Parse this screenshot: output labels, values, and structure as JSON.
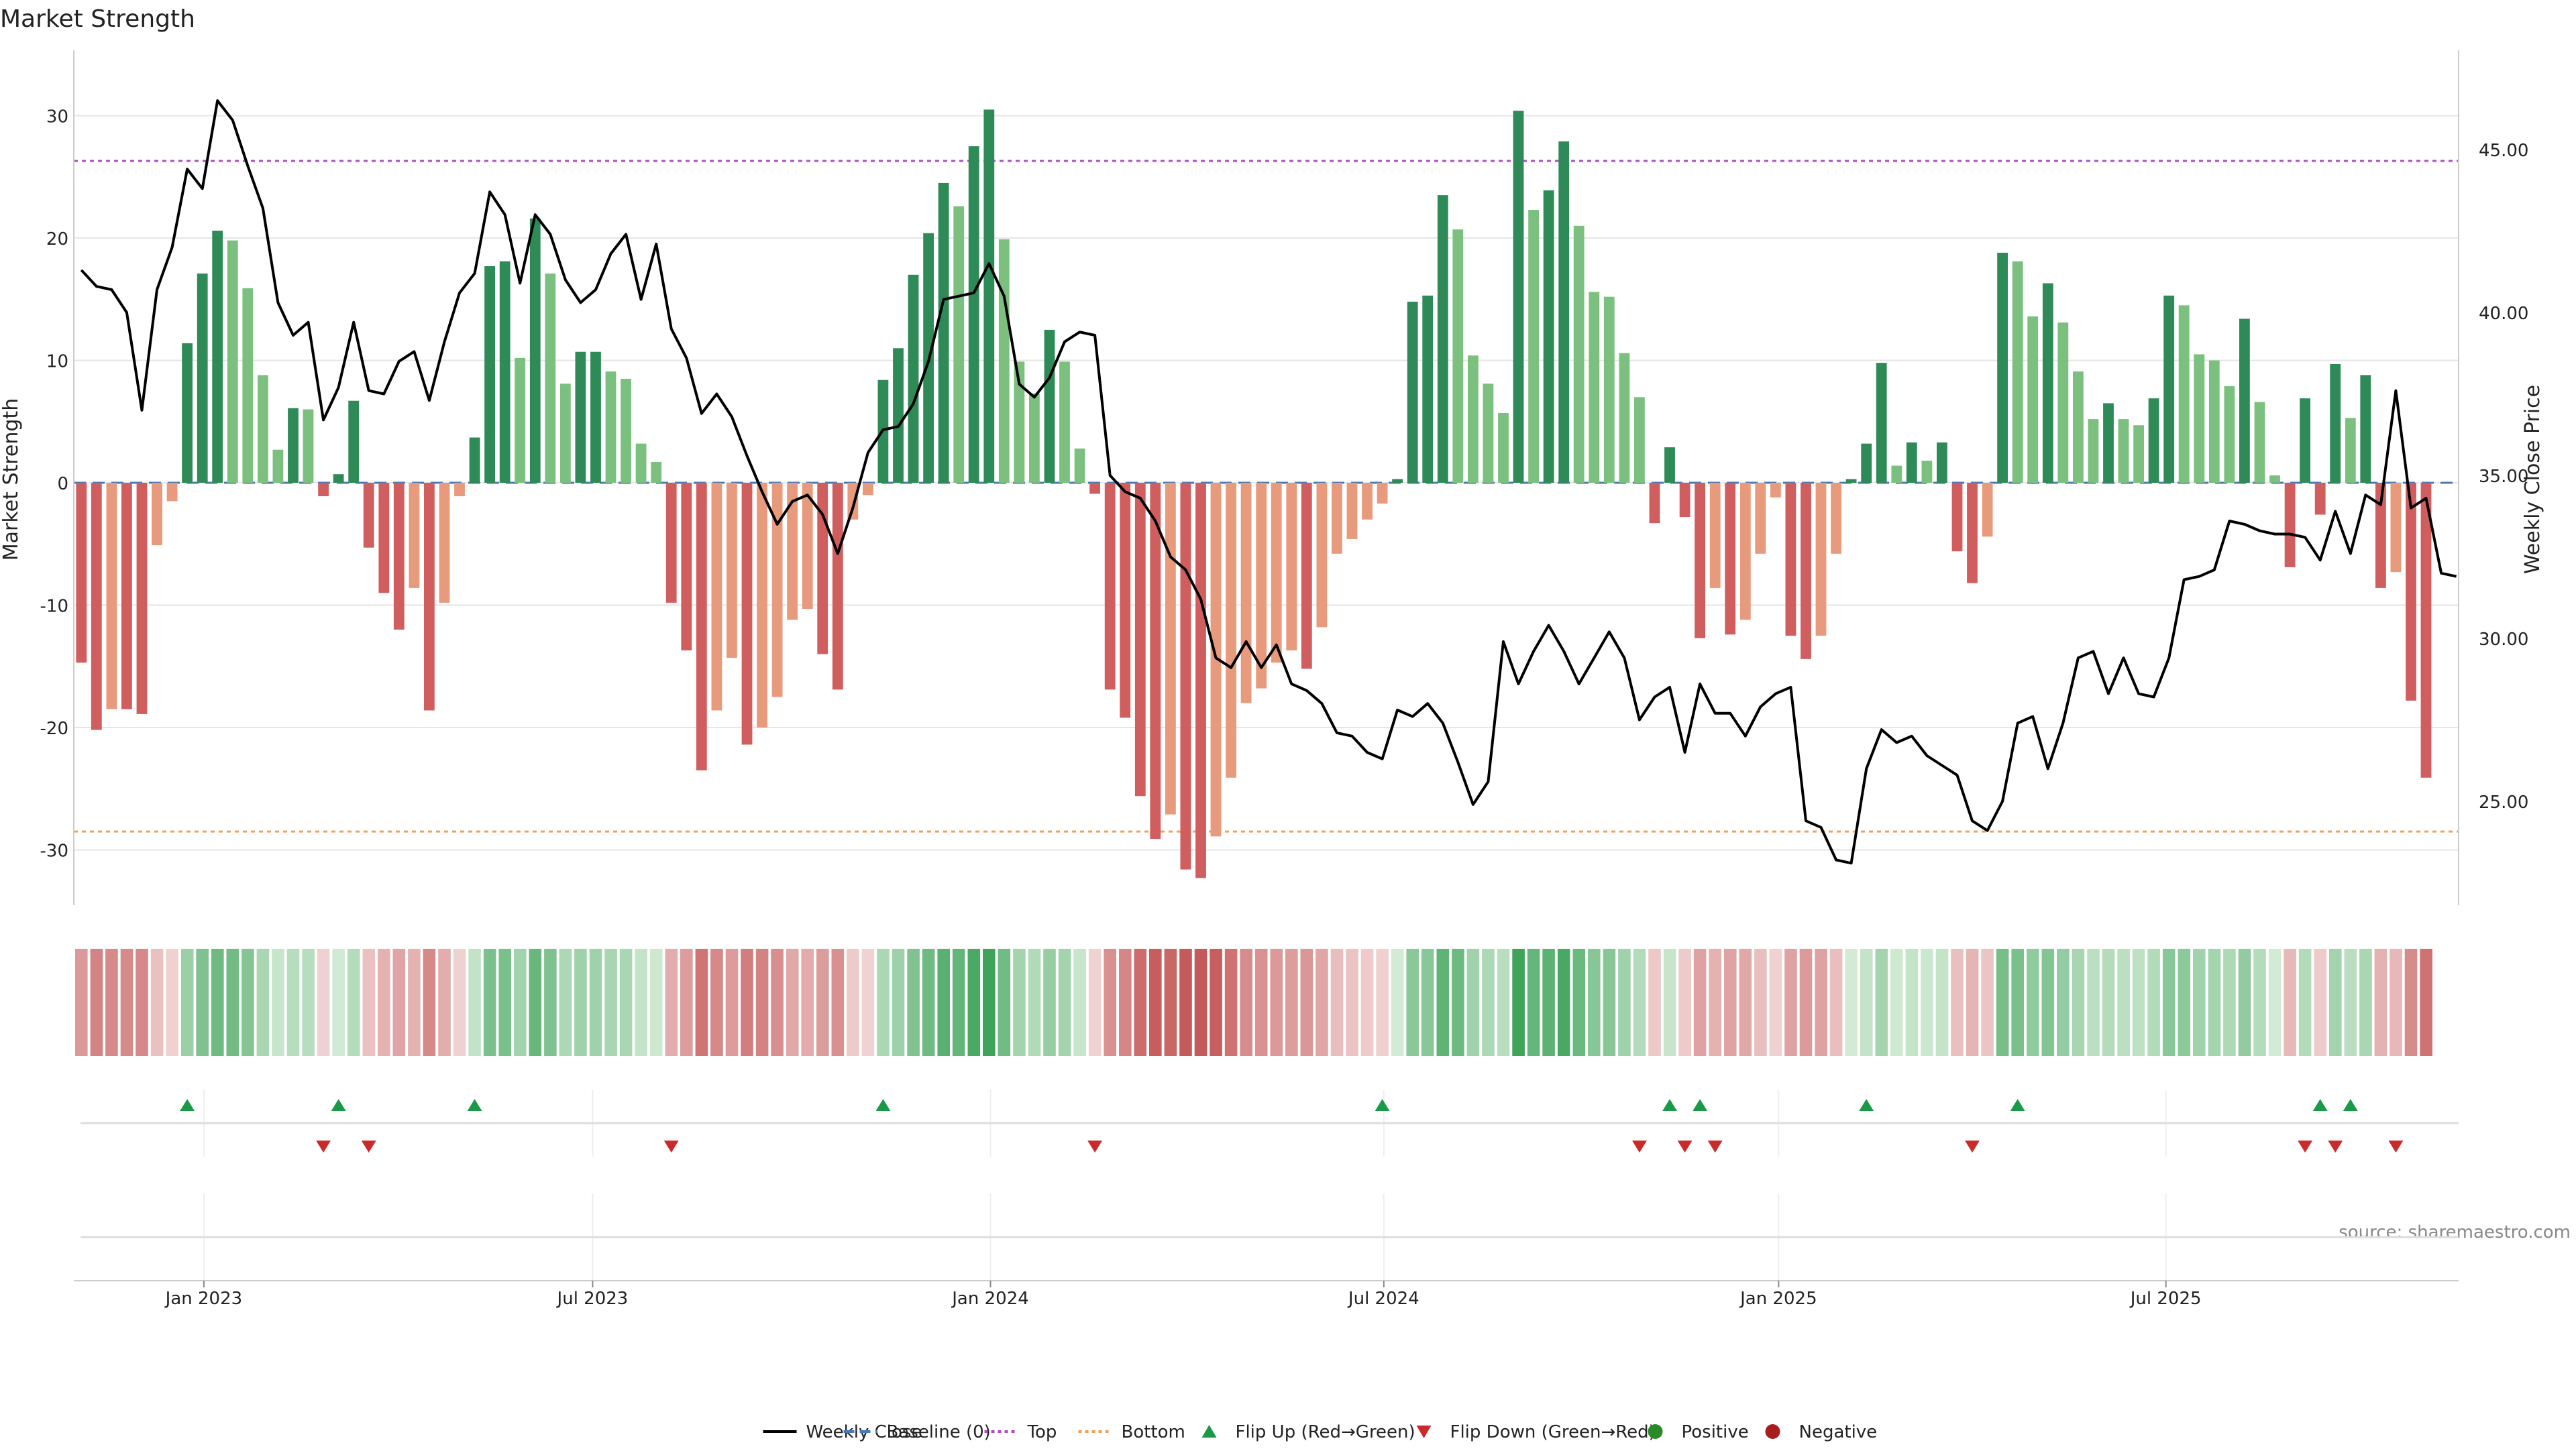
{
  "chart_data": {
    "type": "bar",
    "title": "Market Strength",
    "ylabel": "Market Strength",
    "y2label": "Weekly Close Price",
    "ylim": [
      -35,
      35
    ],
    "y2lim": [
      21.5,
      48.2
    ],
    "y_ticks": [
      30,
      20,
      10,
      0,
      -10,
      -20,
      -30
    ],
    "y2_ticks": [
      45.0,
      40.0,
      35.0,
      30.0,
      25.0
    ],
    "y2_tick_labels": [
      "45.00",
      "40.00",
      "35.00",
      "30.00",
      "25.00"
    ],
    "x_ticks": [
      {
        "label": "Jan 2023",
        "week": 8.6
      },
      {
        "label": "Jul 2023",
        "week": 34.3
      },
      {
        "label": "Jan 2024",
        "week": 60.6
      },
      {
        "label": "Jul 2024",
        "week": 86.6
      },
      {
        "label": "Jan 2025",
        "week": 112.7
      },
      {
        "label": "Jul 2025",
        "week": 138.3
      }
    ],
    "reference_lines": {
      "baseline": 0,
      "top": 26.3,
      "bottom": -28.5
    },
    "week_count": 158,
    "strength": [
      -14.7,
      -20.2,
      -18.5,
      -18.5,
      -18.9,
      -5.1,
      -1.5,
      11.4,
      17.1,
      20.6,
      19.8,
      15.9,
      8.8,
      2.7,
      6.1,
      6.0,
      -1.1,
      0.7,
      6.7,
      -5.3,
      -9.0,
      -12.0,
      -8.6,
      -18.6,
      -9.8,
      -1.1,
      3.7,
      17.7,
      18.1,
      10.2,
      21.6,
      17.1,
      8.1,
      10.7,
      10.7,
      9.1,
      8.5,
      3.2,
      1.7,
      -9.8,
      -13.7,
      -23.5,
      -18.6,
      -14.3,
      -21.4,
      -20.0,
      -17.5,
      -11.2,
      -10.3,
      -14.0,
      -16.9,
      -3.0,
      -1.0,
      8.4,
      11.0,
      17.0,
      20.4,
      24.5,
      22.6,
      27.5,
      30.5,
      19.9,
      9.9,
      7.3,
      12.5,
      9.9,
      2.8,
      -0.9,
      -16.9,
      -19.2,
      -25.6,
      -29.1,
      -27.1,
      -31.6,
      -32.3,
      -28.9,
      -24.1,
      -18.0,
      -16.8,
      -14.7,
      -13.7,
      -15.2,
      -11.8,
      -5.8,
      -4.6,
      -3.0,
      -1.7,
      0.3,
      14.8,
      15.3,
      23.5,
      20.7,
      10.4,
      8.1,
      5.7,
      30.4,
      22.3,
      23.9,
      27.9,
      21.0,
      15.6,
      15.2,
      10.6,
      7.0,
      -3.3,
      2.9,
      -2.8,
      -12.7,
      -8.6,
      -12.4,
      -11.2,
      -5.8,
      -1.2,
      -12.5,
      -14.4,
      -12.5,
      -5.8,
      0.3,
      3.2,
      9.8,
      1.4,
      3.3,
      1.8,
      3.3,
      -5.6,
      -8.2,
      -4.4,
      18.8,
      18.1,
      13.6,
      16.3,
      13.1,
      9.1,
      5.2,
      6.5,
      5.2,
      4.7,
      6.9,
      15.3,
      14.5,
      10.5,
      10.0,
      7.9,
      13.4,
      6.6,
      0.6,
      -6.9,
      6.9,
      -2.6,
      9.7,
      5.3,
      8.8,
      -8.6,
      -7.3,
      -17.8,
      -24.1
    ],
    "weekly_close": [
      41.3,
      40.8,
      40.7,
      40.0,
      37.0,
      40.7,
      42.0,
      44.4,
      43.8,
      46.5,
      45.9,
      44.5,
      43.2,
      40.3,
      39.3,
      39.7,
      36.7,
      37.7,
      39.7,
      37.6,
      37.5,
      38.5,
      38.8,
      37.3,
      39.1,
      40.6,
      41.2,
      43.7,
      43.0,
      40.9,
      43.0,
      42.4,
      41.0,
      40.3,
      40.7,
      41.8,
      42.4,
      40.4,
      42.1,
      39.5,
      38.6,
      36.9,
      37.5,
      36.8,
      35.6,
      34.5,
      33.5,
      34.2,
      34.4,
      33.8,
      32.6,
      34.0,
      35.7,
      36.4,
      36.5,
      37.2,
      38.5,
      40.4,
      40.5,
      40.6,
      41.5,
      40.5,
      37.8,
      37.4,
      38.0,
      39.1,
      39.4,
      39.3,
      35.0,
      34.5,
      34.3,
      33.6,
      32.5,
      32.1,
      31.2,
      29.4,
      29.1,
      29.9,
      29.1,
      29.8,
      28.6,
      28.4,
      28.0,
      27.1,
      27.0,
      26.5,
      26.3,
      27.8,
      27.6,
      28.0,
      27.4,
      26.2,
      24.9,
      25.6,
      29.9,
      28.6,
      29.6,
      30.4,
      29.6,
      28.6,
      29.4,
      30.2,
      29.4,
      27.5,
      28.2,
      28.5,
      26.5,
      28.6,
      27.7,
      27.7,
      27.0,
      27.9,
      28.3,
      28.5,
      24.4,
      24.2,
      23.2,
      23.1,
      26.0,
      27.2,
      26.8,
      27.0,
      26.4,
      26.1,
      25.8,
      24.4,
      24.1,
      25.0,
      27.4,
      27.6,
      26.0,
      27.4,
      29.4,
      29.6,
      28.3,
      29.4,
      28.3,
      28.2,
      29.4,
      31.8,
      31.9,
      32.1,
      33.6,
      33.5,
      33.3,
      33.2,
      33.2,
      33.1,
      32.4,
      33.9,
      32.6,
      34.4,
      34.1,
      37.6,
      34.0,
      34.3,
      32.0,
      31.9
    ],
    "heat_strength": [
      -14.7,
      -20.2,
      -18.5,
      -18.5,
      -18.9,
      -5.1,
      -1.5,
      11.4,
      17.1,
      20.6,
      19.8,
      15.9,
      8.8,
      2.7,
      6.1,
      6.0,
      -1.1,
      0.7,
      6.7,
      -5.3,
      -9.0,
      -12.0,
      -8.6,
      -18.6,
      -9.8,
      -1.1,
      3.7,
      17.7,
      18.1,
      10.2,
      21.6,
      17.1,
      8.1,
      10.7,
      10.7,
      9.1,
      8.5,
      3.2,
      1.7,
      -9.8,
      -13.7,
      -23.5,
      -18.6,
      -14.3,
      -21.4,
      -20.0,
      -17.5,
      -11.2,
      -10.3,
      -14.0,
      -16.9,
      -3.0,
      -1.0,
      8.4,
      11.0,
      17.0,
      20.4,
      24.5,
      22.6,
      27.5,
      30.5,
      19.9,
      9.9,
      7.3,
      12.5,
      9.9,
      2.8,
      -0.9,
      -16.9,
      -19.2,
      -25.6,
      -29.1,
      -27.1,
      -31.6,
      -32.3,
      -28.9,
      -24.1,
      -18.0,
      -16.8,
      -14.7,
      -13.7,
      -15.2,
      -11.8,
      -5.8,
      -4.6,
      -3.0,
      -1.7,
      0.3,
      14.8,
      15.3,
      23.5,
      20.7,
      10.4,
      8.1,
      5.7,
      30.4,
      22.3,
      23.9,
      27.9,
      21.0,
      15.6,
      15.2,
      10.6,
      7.0,
      -3.3,
      2.9,
      -2.8,
      -12.7,
      -8.6,
      -12.4,
      -11.2,
      -5.8,
      -1.2,
      -12.5,
      -14.4,
      -12.5,
      -5.8,
      0.3,
      3.2,
      9.8,
      1.4,
      3.3,
      1.8,
      3.3,
      -5.6,
      -8.2,
      -4.4,
      18.8,
      18.1,
      13.6,
      16.3,
      13.1,
      9.1,
      5.2,
      6.5,
      5.2,
      4.7,
      6.9,
      15.3,
      14.5,
      10.5,
      10.0,
      7.9,
      13.4,
      6.6,
      0.6,
      -6.9,
      6.9,
      -2.6,
      9.7,
      5.3,
      8.8,
      -8.6,
      -7.3,
      -17.8,
      -24.1
    ],
    "flip_up_weeks": [
      7.5,
      17.5,
      26.5,
      53.5,
      86.5,
      105.5,
      107.5,
      118.5,
      128.5,
      148.5,
      150.5
    ],
    "flip_down_weeks": [
      16.5,
      19.5,
      39.5,
      67.5,
      103.5,
      106.5,
      108.5,
      125.5,
      147.5,
      149.5,
      153.5
    ],
    "legend": [
      {
        "label": "Weekly Close",
        "kind": "line",
        "color": "#000000"
      },
      {
        "label": "Baseline (0)",
        "kind": "dash",
        "color": "#4a78b5"
      },
      {
        "label": "Top",
        "kind": "dot",
        "color": "#b04cc8"
      },
      {
        "label": "Bottom",
        "kind": "dot",
        "color": "#f2a05a"
      },
      {
        "label": "Flip Up (Red→Green)",
        "kind": "up",
        "color": "#1a9a46"
      },
      {
        "label": "Flip Down (Green→Red)",
        "kind": "down",
        "color": "#cc2a2a"
      },
      {
        "label": "Positive",
        "kind": "circle",
        "color": "#2a8a2a"
      },
      {
        "label": "Negative",
        "kind": "circle",
        "color": "#a81e1e"
      }
    ],
    "source_note": "source: sharemaestro.com",
    "colors": {
      "pos_strong": "#2e8a57",
      "pos_weak": "#7cc07f",
      "neg_strong": "#d05e5e",
      "neg_weak": "#e89a7c",
      "grid": "#e6e6e6",
      "axis_text": "#222222"
    }
  }
}
